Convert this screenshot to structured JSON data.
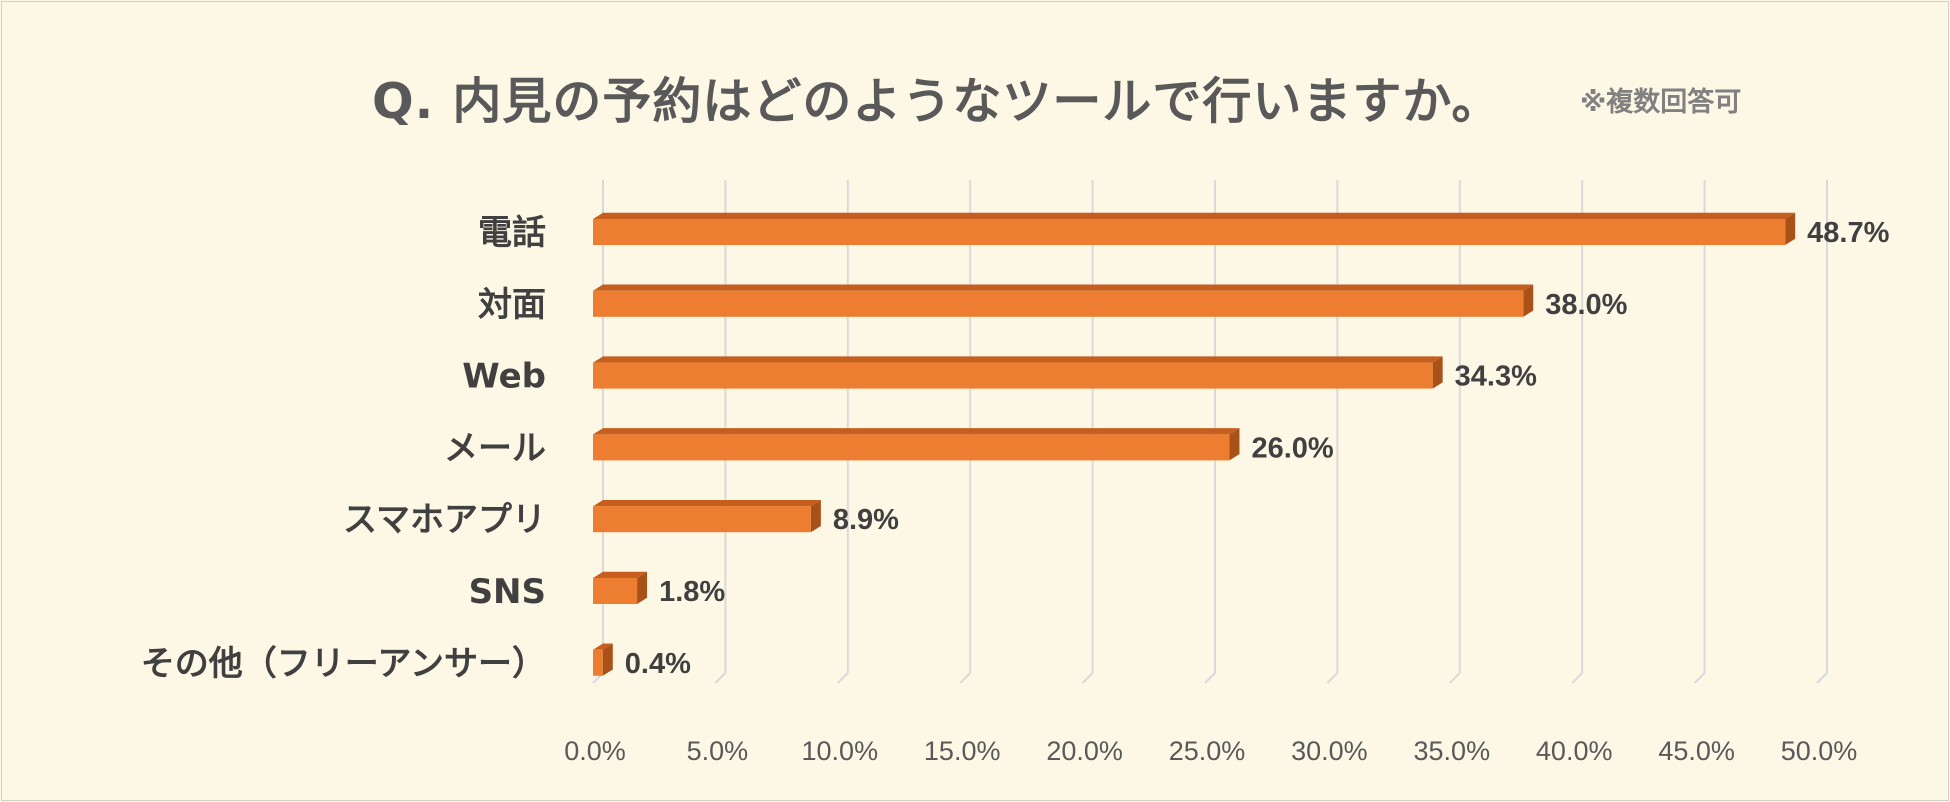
{
  "title": "Q. 内見の予約はどのようなツールで行いますか。",
  "note": "※複数回答可",
  "colors": {
    "background": "#fdf8e6",
    "bar_front": "#ed7d31",
    "bar_side": "#a8521a",
    "bar_top": "#c65e1e",
    "grid": "#d9d9d9",
    "text": "#404040"
  },
  "chart_data": {
    "type": "bar",
    "orientation": "horizontal",
    "style": "3d",
    "title": "Q. 内見の予約はどのようなツールで行いますか。",
    "categories": [
      "電話",
      "対面",
      "Web",
      "メール",
      "スマホアプリ",
      "SNS",
      "その他（フリーアンサー）"
    ],
    "values": [
      48.7,
      38.0,
      34.3,
      26.0,
      8.9,
      1.8,
      0.4
    ],
    "value_labels": [
      "48.7%",
      "38.0%",
      "34.3%",
      "26.0%",
      "8.9%",
      "1.8%",
      "0.4%"
    ],
    "xticks": [
      "0.0%",
      "5.0%",
      "10.0%",
      "15.0%",
      "20.0%",
      "25.0%",
      "30.0%",
      "35.0%",
      "40.0%",
      "45.0%",
      "50.0%"
    ],
    "xlim": [
      0,
      50
    ],
    "grid": true,
    "legend": "none"
  }
}
